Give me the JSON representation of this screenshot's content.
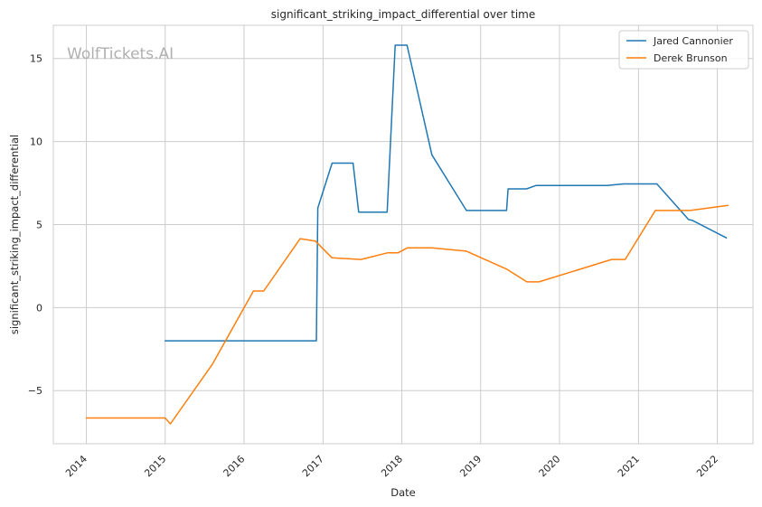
{
  "watermark": "WolfTickets.AI",
  "chart_data": {
    "type": "line",
    "title": "significant_striking_impact_differential over time",
    "xlabel": "Date",
    "ylabel": "significant_striking_impact_differential",
    "xlim": [
      "2013-08-01",
      "2022-06-15"
    ],
    "ylim": [
      -8.2,
      17.0
    ],
    "xticks": [
      "2014",
      "2015",
      "2016",
      "2017",
      "2018",
      "2019",
      "2020",
      "2021",
      "2022"
    ],
    "yticks": [
      -5,
      0,
      5,
      10,
      15
    ],
    "ytick_labels": [
      "−5",
      "0",
      "5",
      "10",
      "15"
    ],
    "grid": true,
    "legend_position": "top-right",
    "series": [
      {
        "name": "Jared Cannonier",
        "color": "#1f77b4",
        "points": [
          [
            "2015-01-01",
            -2.0
          ],
          [
            "2016-12-01",
            -2.0
          ],
          [
            "2016-12-08",
            6.0
          ],
          [
            "2017-02-12",
            8.7
          ],
          [
            "2017-05-20",
            8.7
          ],
          [
            "2017-06-15",
            5.75
          ],
          [
            "2017-10-25",
            5.75
          ],
          [
            "2017-12-01",
            15.8
          ],
          [
            "2018-01-25",
            15.8
          ],
          [
            "2018-05-20",
            9.2
          ],
          [
            "2018-10-27",
            5.85
          ],
          [
            "2019-05-01",
            5.85
          ],
          [
            "2019-05-08",
            7.15
          ],
          [
            "2019-08-01",
            7.15
          ],
          [
            "2019-09-14",
            7.35
          ],
          [
            "2020-08-08",
            7.35
          ],
          [
            "2020-10-24",
            7.45
          ],
          [
            "2021-03-27",
            7.45
          ],
          [
            "2021-08-21",
            5.3
          ],
          [
            "2021-09-08",
            5.25
          ],
          [
            "2022-02-12",
            4.2
          ]
        ]
      },
      {
        "name": "Derek Brunson",
        "color": "#ff7f0e",
        "points": [
          [
            "2014-01-01",
            -6.65
          ],
          [
            "2015-01-01",
            -6.65
          ],
          [
            "2015-01-25",
            -7.0
          ],
          [
            "2015-08-08",
            -3.4
          ],
          [
            "2016-02-14",
            1.0
          ],
          [
            "2016-04-01",
            1.0
          ],
          [
            "2016-09-17",
            4.15
          ],
          [
            "2016-11-27",
            4.0
          ],
          [
            "2017-02-11",
            3.0
          ],
          [
            "2017-06-25",
            2.9
          ],
          [
            "2017-10-28",
            3.3
          ],
          [
            "2017-12-15",
            3.3
          ],
          [
            "2018-01-27",
            3.6
          ],
          [
            "2018-05-20",
            3.6
          ],
          [
            "2018-10-27",
            3.4
          ],
          [
            "2019-05-04",
            2.3
          ],
          [
            "2019-08-03",
            1.55
          ],
          [
            "2019-09-28",
            1.55
          ],
          [
            "2020-08-29",
            2.9
          ],
          [
            "2020-10-31",
            2.9
          ],
          [
            "2021-03-20",
            5.85
          ],
          [
            "2021-08-28",
            5.85
          ],
          [
            "2022-02-19",
            6.15
          ]
        ]
      }
    ]
  }
}
